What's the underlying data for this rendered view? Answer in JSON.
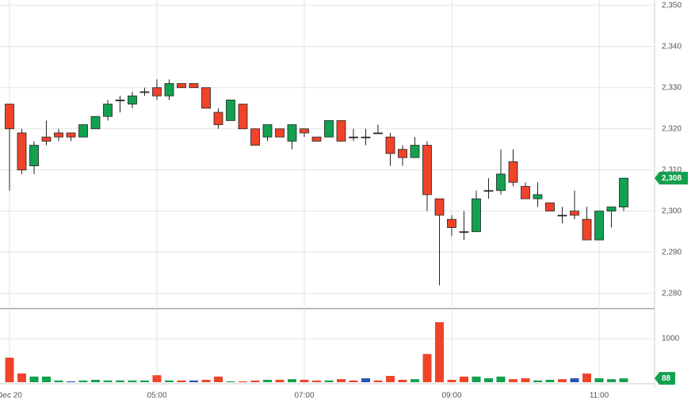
{
  "chart_data": {
    "type": "candlestick",
    "categories": [
      "Dec 20",
      null,
      null,
      null,
      null,
      null,
      null,
      null,
      null,
      null,
      null,
      null,
      "05:00",
      null,
      null,
      null,
      null,
      null,
      null,
      null,
      null,
      null,
      null,
      null,
      "07:00",
      null,
      null,
      null,
      null,
      null,
      null,
      null,
      null,
      null,
      null,
      null,
      "09:00",
      null,
      null,
      null,
      null,
      null,
      null,
      null,
      null,
      null,
      null,
      null,
      "11:00",
      null,
      null
    ],
    "open": [
      2326,
      2319,
      2311,
      2318,
      2319,
      2319,
      2318,
      2320,
      2323,
      2327,
      2326,
      2329,
      2330,
      2328,
      2331,
      2331,
      2330,
      2324,
      2322,
      2326,
      2320,
      2318,
      2320,
      2317,
      2320,
      2318,
      2318,
      2322,
      2318,
      2318,
      2319,
      2318,
      2315,
      2313,
      2316,
      2303,
      2298,
      2295,
      2295,
      2305,
      2305,
      2312,
      2306,
      2303,
      2302,
      2299,
      2300,
      2298,
      2293,
      2300,
      2301
    ],
    "high": [
      2326,
      2320,
      2317,
      2322,
      2320,
      2319,
      2321,
      2323,
      2327,
      2328,
      2329,
      2330,
      2332,
      2332,
      2331,
      2331,
      2330,
      2325,
      2327,
      2326,
      2320,
      2321,
      2320,
      2321,
      2320,
      2318,
      2322,
      2322,
      2320,
      2320,
      2321,
      2319,
      2316,
      2318,
      2317,
      2303,
      2299,
      2300,
      2305,
      2308,
      2315,
      2315,
      2307,
      2307,
      2302,
      2301,
      2305,
      2301,
      2300,
      2301,
      2308
    ],
    "low": [
      2305,
      2309,
      2309,
      2316,
      2317,
      2317,
      2318,
      2320,
      2322,
      2324,
      2325,
      2328,
      2327,
      2327,
      2330,
      2330,
      2325,
      2320,
      2322,
      2320,
      2316,
      2317,
      2318,
      2315,
      2318,
      2317,
      2318,
      2317,
      2317,
      2316,
      2319,
      2311,
      2311,
      2313,
      2300,
      2282,
      2294,
      2293,
      2295,
      2303,
      2304,
      2306,
      2303,
      2301,
      2300,
      2297,
      2298,
      2293,
      2293,
      2296,
      2300
    ],
    "close": [
      2320,
      2310,
      2316,
      2317,
      2318,
      2318,
      2321,
      2323,
      2326,
      2327,
      2328,
      2329,
      2328,
      2331,
      2330,
      2330,
      2325,
      2321,
      2327,
      2320,
      2316,
      2321,
      2318,
      2321,
      2319,
      2317,
      2322,
      2317,
      2318,
      2318,
      2319,
      2314,
      2313,
      2316,
      2304,
      2299,
      2296,
      2295,
      2303,
      2305,
      2309,
      2307,
      2303,
      2304,
      2300,
      2299,
      2299,
      2293,
      2300,
      2301,
      2308
    ],
    "up_color": "#12a14f",
    "down_color": "#ef4429",
    "volume": [
      564,
      200,
      130,
      130,
      40,
      20,
      40,
      55,
      40,
      40,
      40,
      40,
      160,
      40,
      40,
      40,
      55,
      130,
      20,
      20,
      40,
      55,
      55,
      70,
      55,
      40,
      40,
      70,
      40,
      90,
      40,
      145,
      55,
      70,
      650,
      1380,
      55,
      130,
      130,
      90,
      130,
      70,
      90,
      40,
      55,
      70,
      90,
      200,
      90,
      70,
      88
    ],
    "volume_colors": [
      "#ef4429",
      "#ef4429",
      "#12a14f",
      "#12a14f",
      "#12a14f",
      "#2452b5",
      "#12a14f",
      "#12a14f",
      "#12a14f",
      "#12a14f",
      "#12a14f",
      "#12a14f",
      "#ef4429",
      "#12a14f",
      "#ef4429",
      "#2452b5",
      "#ef4429",
      "#ef4429",
      "#12a14f",
      "#ef4429",
      "#ef4429",
      "#12a14f",
      "#ef4429",
      "#12a14f",
      "#ef4429",
      "#ef4429",
      "#12a14f",
      "#ef4429",
      "#ef4429",
      "#2452b5",
      "#ef4429",
      "#ef4429",
      "#ef4429",
      "#12a14f",
      "#ef4429",
      "#ef4429",
      "#ef4429",
      "#ef4429",
      "#12a14f",
      "#12a14f",
      "#12a14f",
      "#ef4429",
      "#ef4429",
      "#12a14f",
      "#12a14f",
      "#ef4429",
      "#2452b5",
      "#ef4429",
      "#12a14f",
      "#12a14f",
      "#12a14f"
    ],
    "ylim": [
      2276.3,
      2351.3
    ],
    "yticks": [
      {
        "value": 2280,
        "label": "2,280"
      },
      {
        "value": 2290,
        "label": "2,290"
      },
      {
        "value": 2300,
        "label": "2,300"
      },
      {
        "value": 2310,
        "label": "2,310"
      },
      {
        "value": 2320,
        "label": "2,320"
      },
      {
        "value": 2330,
        "label": "2,330"
      },
      {
        "value": 2340,
        "label": "2,340"
      },
      {
        "value": 2350,
        "label": "2,350"
      }
    ],
    "volume_ylim": [
      0,
      1655
    ],
    "volume_yticks": [
      1000
    ],
    "price_tag": {
      "value": 2308,
      "label": "2,308"
    },
    "volume_tag": 88,
    "grid": true
  }
}
